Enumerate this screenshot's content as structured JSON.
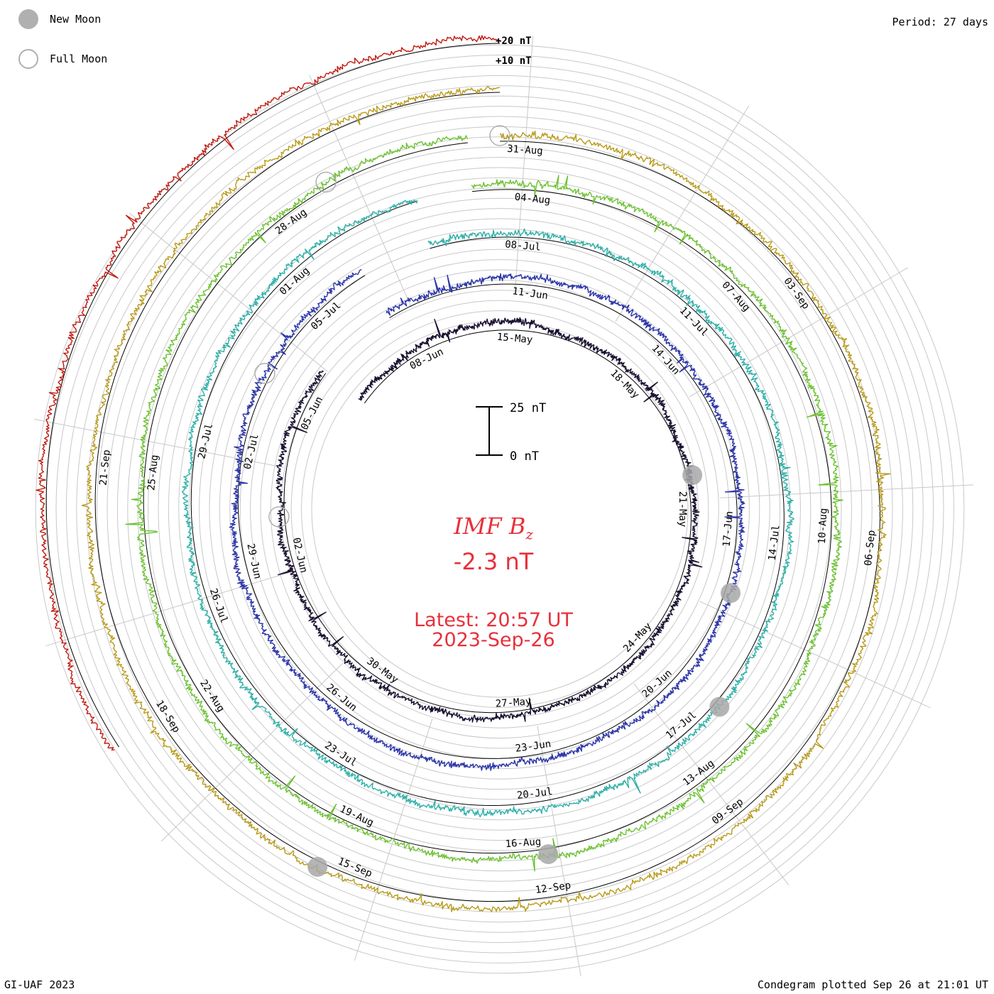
{
  "header": {
    "period": "Period: 27 days"
  },
  "legend": {
    "new_moon": "New Moon",
    "full_moon": "Full Moon"
  },
  "footer": {
    "credit": "GI-UAF 2023",
    "plotted": "Condegram plotted Sep 26 at 21:01 UT"
  },
  "center": {
    "title": "IMF B",
    "title_sub": "z",
    "value": "-2.3 nT",
    "latest_time": "Latest: 20:57 UT",
    "latest_date": "2023-Sep-26"
  },
  "chart_data": {
    "type": "line",
    "title": "IMF Bz",
    "period_days": 27,
    "latest_value_nT": -2.3,
    "scale_bar": {
      "top_label": "25 nT",
      "bottom_label": "0 nT"
    },
    "outer_scale_labels": [
      "+20 nT",
      "+10 nT"
    ],
    "grid": true,
    "series": [
      {
        "name": "",
        "color": "#1a1030",
        "start_angle_deg": -52,
        "extent_deg": 360,
        "date_labels": [
          {
            "text": "15-May",
            "angle_deg": 5
          },
          {
            "text": "18-May",
            "angle_deg": 45
          },
          {
            "text": "21-May",
            "angle_deg": 90
          },
          {
            "text": "24-May",
            "angle_deg": 133
          },
          {
            "text": "27-May",
            "angle_deg": 176
          },
          {
            "text": "30-May",
            "angle_deg": 216
          },
          {
            "text": "02-Jun",
            "angle_deg": 257
          },
          {
            "text": "05-Jun",
            "angle_deg": 297
          },
          {
            "text": "08-Jun",
            "angle_deg": 334
          }
        ]
      },
      {
        "name": "",
        "color": "#2b35a8",
        "start_angle_deg": -30,
        "extent_deg": 360,
        "date_labels": [
          {
            "text": "11-Jun",
            "angle_deg": 8
          },
          {
            "text": "14-Jun",
            "angle_deg": 48
          },
          {
            "text": "17-Jun",
            "angle_deg": 95
          },
          {
            "text": "20-Jun",
            "angle_deg": 138
          },
          {
            "text": "23-Jun",
            "angle_deg": 172
          },
          {
            "text": "26-Jun",
            "angle_deg": 220
          },
          {
            "text": "29-Jun",
            "angle_deg": 258
          },
          {
            "text": "02-Jul",
            "angle_deg": 283
          },
          {
            "text": "05-Jul",
            "angle_deg": 318
          }
        ]
      },
      {
        "name": "",
        "color": "#2eb0a8",
        "start_angle_deg": -15,
        "extent_deg": 360,
        "date_labels": [
          {
            "text": "08-Jul",
            "angle_deg": 5
          },
          {
            "text": "11-Jul",
            "angle_deg": 46
          },
          {
            "text": "14-Jul",
            "angle_deg": 97
          },
          {
            "text": "17-Jul",
            "angle_deg": 140
          },
          {
            "text": "20-Jul",
            "angle_deg": 173
          },
          {
            "text": "23-Jul",
            "angle_deg": 213
          },
          {
            "text": "26-Jul",
            "angle_deg": 251
          },
          {
            "text": "29-Jul",
            "angle_deg": 283
          },
          {
            "text": "01-Aug",
            "angle_deg": 318
          }
        ]
      },
      {
        "name": "",
        "color": "#6cc230",
        "start_angle_deg": -5,
        "extent_deg": 360,
        "date_labels": [
          {
            "text": "04-Aug",
            "angle_deg": 6
          },
          {
            "text": "07-Aug",
            "angle_deg": 48
          },
          {
            "text": "10-Aug",
            "angle_deg": 93
          },
          {
            "text": "13-Aug",
            "angle_deg": 143
          },
          {
            "text": "16-Aug",
            "angle_deg": 176
          },
          {
            "text": "19-Aug",
            "angle_deg": 205
          },
          {
            "text": "22-Aug",
            "angle_deg": 237
          },
          {
            "text": "25-Aug",
            "angle_deg": 276
          },
          {
            "text": "28-Aug",
            "angle_deg": 324
          }
        ]
      },
      {
        "name": "",
        "color": "#b89a18",
        "start_angle_deg": 0,
        "extent_deg": 360,
        "date_labels": [
          {
            "text": "31-Aug",
            "angle_deg": 4
          },
          {
            "text": "03-Sep",
            "angle_deg": 54
          },
          {
            "text": "06-Sep",
            "angle_deg": 96
          },
          {
            "text": "09-Sep",
            "angle_deg": 143
          },
          {
            "text": "12-Sep",
            "angle_deg": 172
          },
          {
            "text": "15-Sep",
            "angle_deg": 202
          },
          {
            "text": "18-Sep",
            "angle_deg": 238
          },
          {
            "text": "21-Sep",
            "angle_deg": 276
          }
        ]
      },
      {
        "name": "",
        "color": "#c01a10",
        "start_angle_deg": 238,
        "extent_deg": 122,
        "date_labels": []
      }
    ],
    "moons": [
      {
        "phase": "new",
        "series_index": 0,
        "angle_deg": 80
      },
      {
        "phase": "new",
        "series_index": 1,
        "angle_deg": 110
      },
      {
        "phase": "new",
        "series_index": 2,
        "angle_deg": 132
      },
      {
        "phase": "new",
        "series_index": 3,
        "angle_deg": 172
      },
      {
        "phase": "new",
        "series_index": 4,
        "angle_deg": 207
      },
      {
        "phase": "full",
        "series_index": 0,
        "angle_deg": 268
      },
      {
        "phase": "full",
        "series_index": 1,
        "angle_deg": 300
      },
      {
        "phase": "full",
        "series_index": 3,
        "angle_deg": 332
      },
      {
        "phase": "full",
        "series_index": 4,
        "angle_deg": 0
      }
    ]
  }
}
